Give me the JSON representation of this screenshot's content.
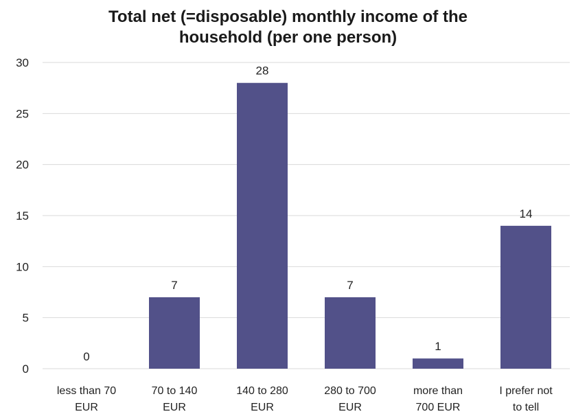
{
  "chart_data": {
    "type": "bar",
    "title_lines": [
      "Total net (=disposable) monthly income of the",
      "household (per one person)"
    ],
    "categories": [
      [
        "less than 70",
        "EUR"
      ],
      [
        "70 to 140",
        "EUR"
      ],
      [
        "140 to 280",
        "EUR"
      ],
      [
        "280 to 700",
        "EUR"
      ],
      [
        "more than",
        "700 EUR"
      ],
      [
        "I prefer not",
        "to tell"
      ]
    ],
    "values": [
      0,
      7,
      28,
      7,
      1,
      14
    ],
    "data_labels": [
      "0",
      "7",
      "28",
      "7",
      "1",
      "14"
    ],
    "ylim": [
      0,
      30
    ],
    "yticks": [
      0,
      5,
      10,
      15,
      20,
      25,
      30
    ],
    "grid": true,
    "legend": "none",
    "colors": {
      "bar": "#525189",
      "grid": "#d9d9d9"
    }
  }
}
